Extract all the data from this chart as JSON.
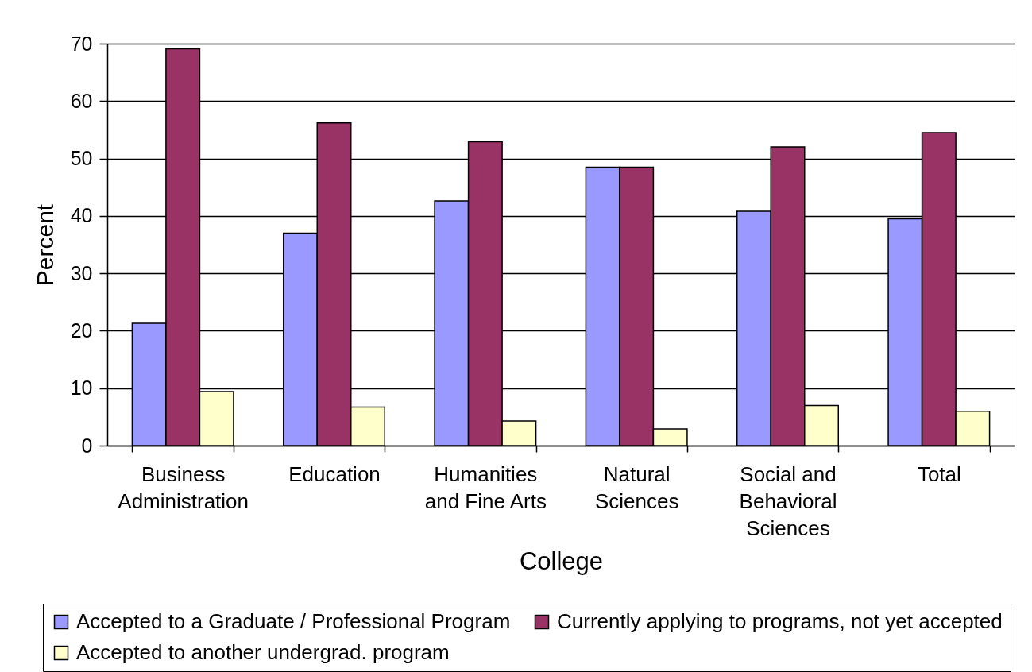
{
  "chart_data": {
    "type": "bar",
    "xlabel": "College",
    "ylabel": "Percent",
    "categories": [
      "Business Administration",
      "Education",
      "Humanities and Fine Arts",
      "Natural Sciences",
      "Social and Behavioral Sciences",
      "Total"
    ],
    "series": [
      {
        "name": "Accepted to a Graduate / Professional Program",
        "color": "#9999ff",
        "values": [
          21.3,
          37.0,
          42.6,
          48.5,
          40.8,
          39.5
        ]
      },
      {
        "name": "Currently applying to programs, not yet accepted",
        "color": "#993366",
        "values": [
          69.1,
          56.2,
          52.9,
          48.5,
          52.0,
          54.5
        ]
      },
      {
        "name": "Accepted to another undergrad. program",
        "color": "#ffffcc",
        "values": [
          9.4,
          6.7,
          4.3,
          2.9,
          7.0,
          6.0
        ]
      }
    ],
    "ylim": [
      0,
      70
    ],
    "yticks": [
      0,
      10,
      20,
      30,
      40,
      50,
      60,
      70
    ],
    "grid": "y",
    "legend": "bottom"
  }
}
